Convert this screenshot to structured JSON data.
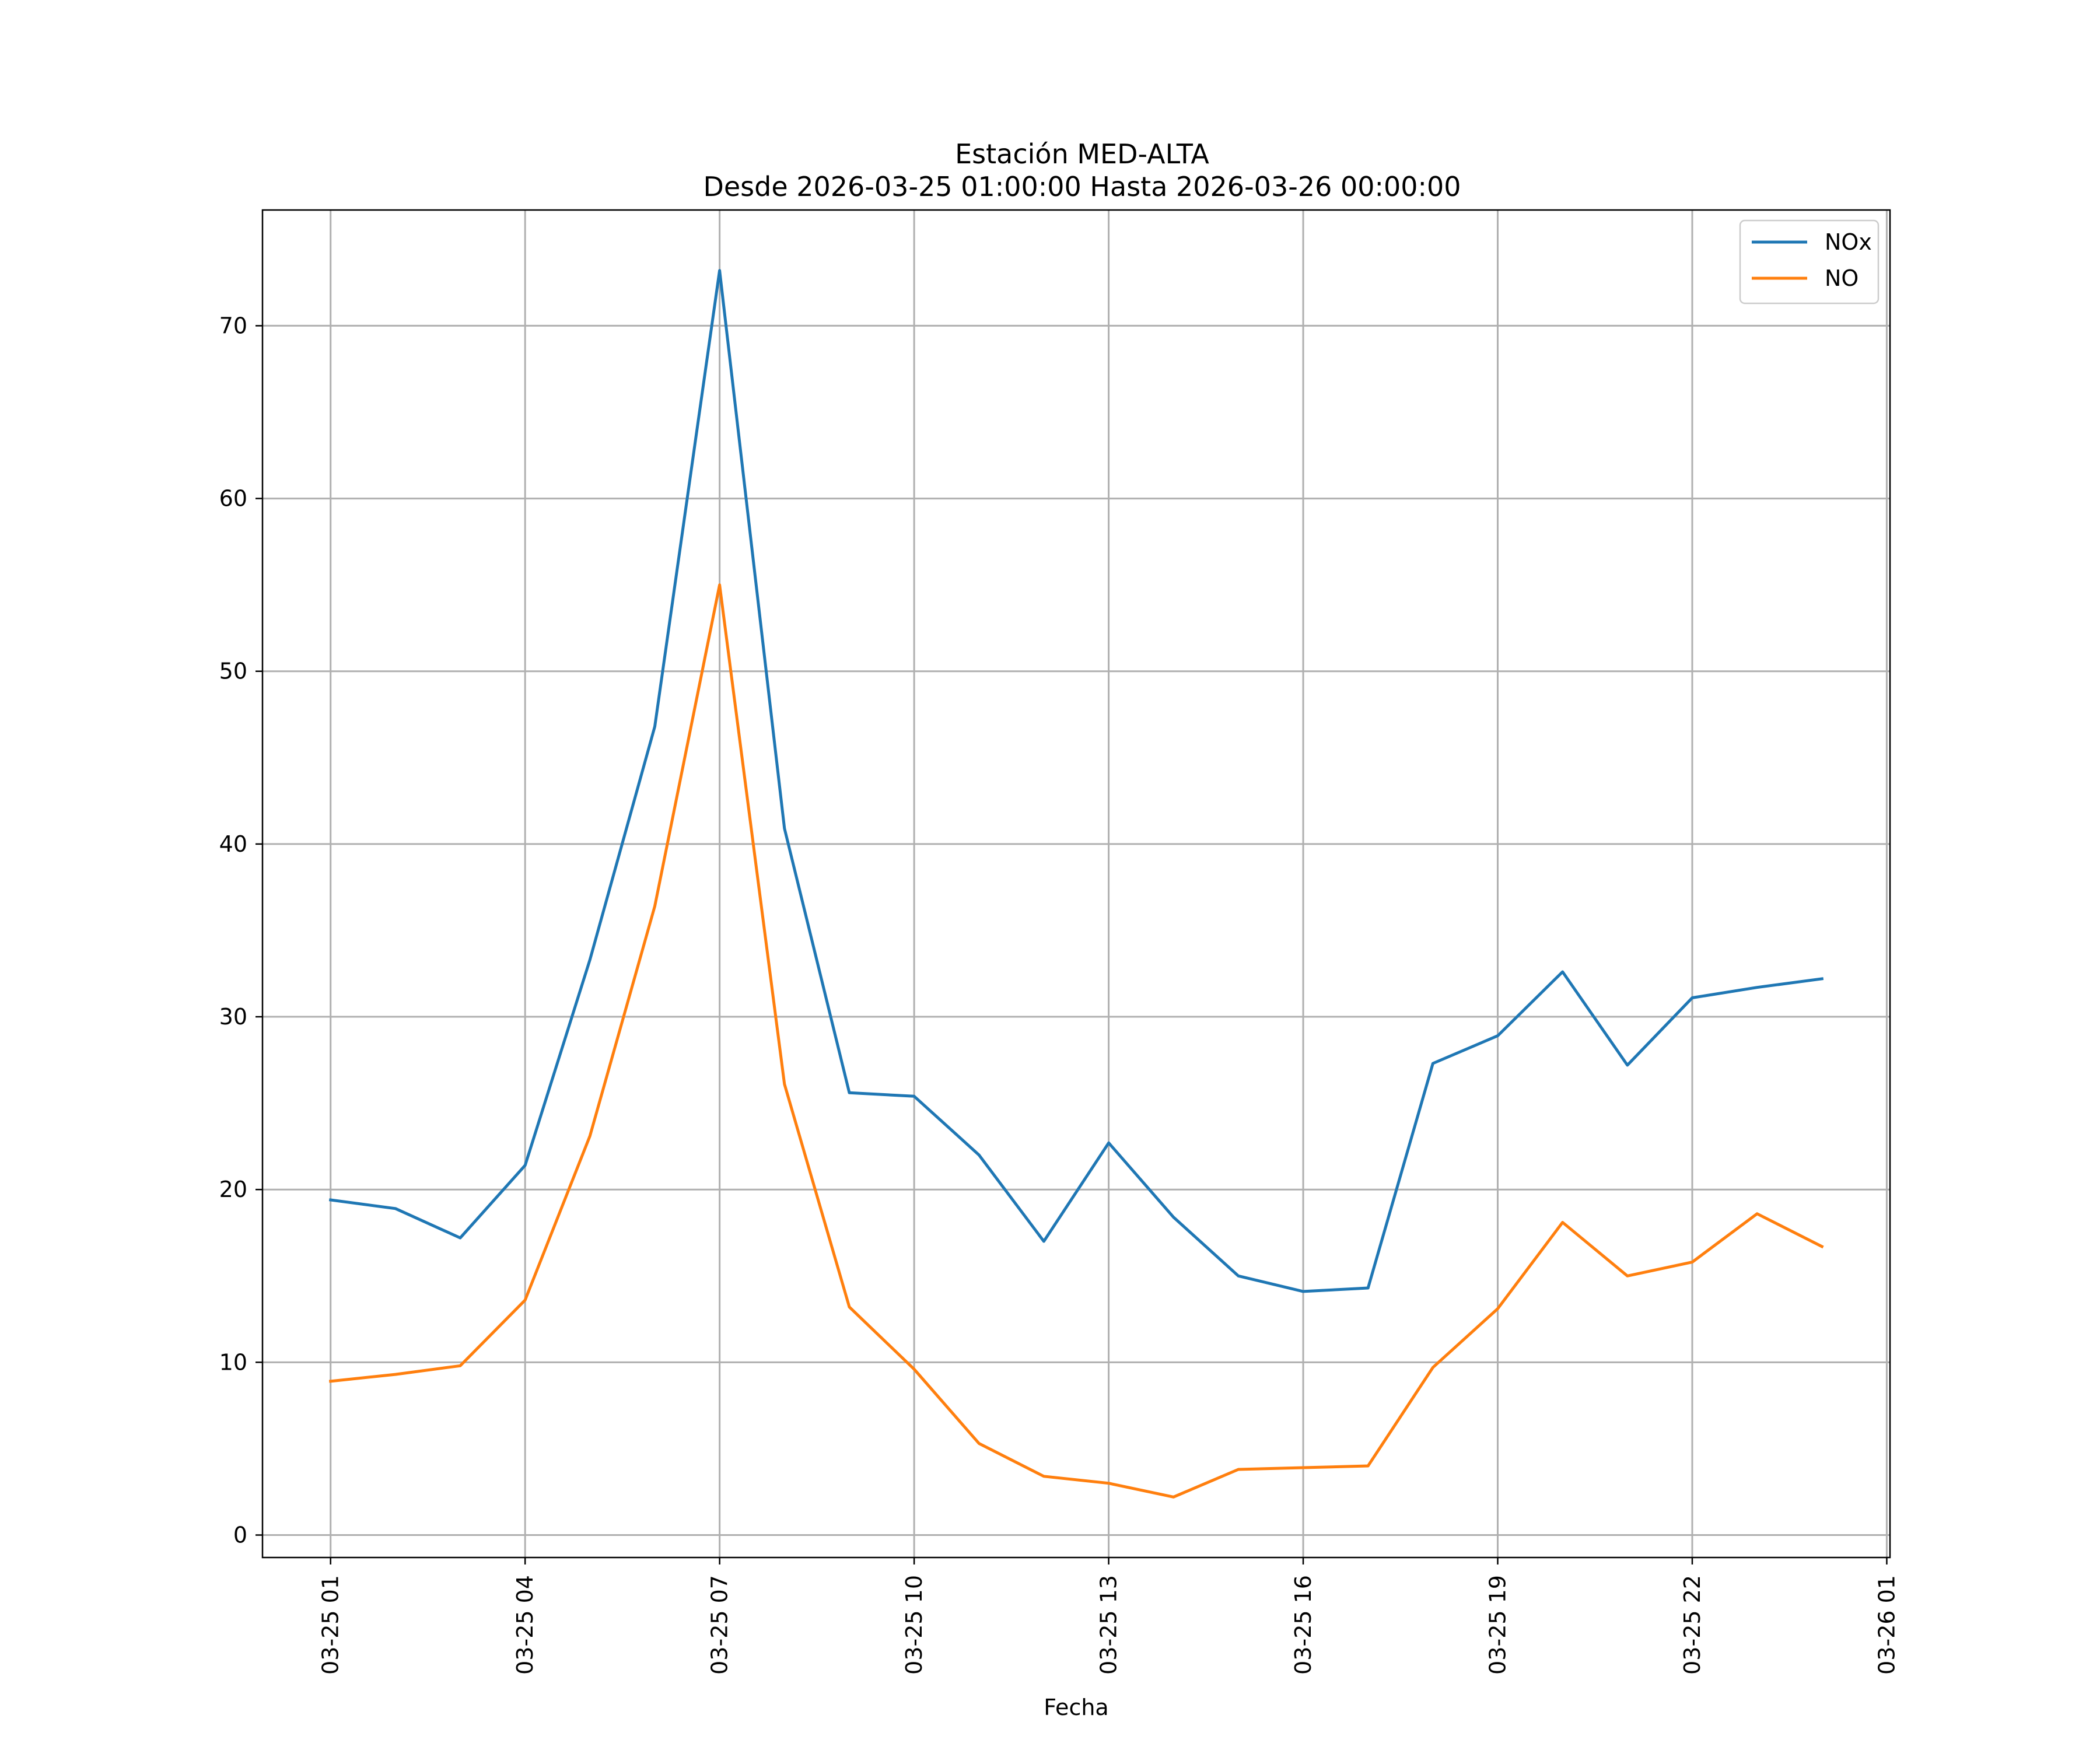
{
  "chart_data": {
    "type": "line",
    "title": "Estación MED-ALTA",
    "subtitle": "Desde 2026-03-25 01:00:00 Hasta 2026-03-26 00:00:00",
    "xlabel": "Fecha",
    "ylabel": "",
    "x_hours": [
      1,
      2,
      3,
      4,
      5,
      6,
      7,
      8,
      9,
      10,
      11,
      12,
      13,
      14,
      15,
      16,
      17,
      18,
      19,
      20,
      21,
      22,
      23,
      24
    ],
    "xlim": [
      -0.05,
      25.05
    ],
    "ylim": [
      -1.3,
      76.7
    ],
    "x_ticks": [
      {
        "hour": 1,
        "label": "03-25 01"
      },
      {
        "hour": 4,
        "label": "03-25 04"
      },
      {
        "hour": 7,
        "label": "03-25 07"
      },
      {
        "hour": 10,
        "label": "03-25 10"
      },
      {
        "hour": 13,
        "label": "03-25 13"
      },
      {
        "hour": 16,
        "label": "03-25 16"
      },
      {
        "hour": 19,
        "label": "03-25 19"
      },
      {
        "hour": 22,
        "label": "03-25 22"
      },
      {
        "hour": 25,
        "label": "03-26 01"
      }
    ],
    "y_ticks": [
      {
        "value": 0,
        "label": "0"
      },
      {
        "value": 10,
        "label": "10"
      },
      {
        "value": 20,
        "label": "20"
      },
      {
        "value": 30,
        "label": "30"
      },
      {
        "value": 40,
        "label": "40"
      },
      {
        "value": 50,
        "label": "50"
      },
      {
        "value": 60,
        "label": "60"
      },
      {
        "value": 70,
        "label": "70"
      }
    ],
    "grid": true,
    "legend_position": "top-right",
    "series": [
      {
        "name": "NOx",
        "color": "#1f77b4",
        "values": [
          19.4,
          18.9,
          17.2,
          21.4,
          33.3,
          46.8,
          73.2,
          40.9,
          25.6,
          25.4,
          22.0,
          17.0,
          22.7,
          18.4,
          15.0,
          14.1,
          14.3,
          27.3,
          28.9,
          32.6,
          27.2,
          31.1,
          31.7,
          32.2
        ]
      },
      {
        "name": "NO",
        "color": "#ff7f0e",
        "values": [
          8.9,
          9.3,
          9.8,
          13.6,
          23.1,
          36.4,
          55.0,
          26.1,
          13.2,
          9.6,
          5.3,
          3.4,
          3.0,
          2.2,
          3.8,
          3.9,
          4.0,
          9.7,
          13.1,
          18.1,
          15.0,
          15.8,
          18.6,
          16.7
        ]
      }
    ]
  }
}
